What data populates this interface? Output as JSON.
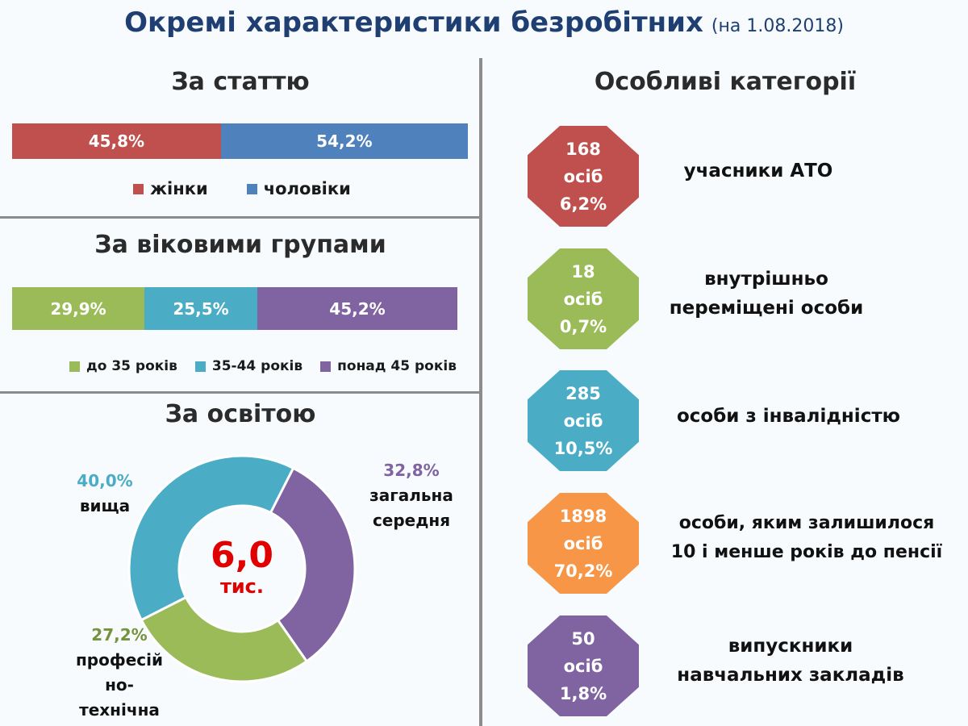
{
  "title": "Окремі характеристики безробітних",
  "title_date": "(на 1.08.2018)",
  "gender": {
    "heading": "За статтю",
    "chart_data": {
      "type": "bar",
      "stacked": true,
      "orientation": "horizontal",
      "categories": [
        "жінки",
        "чоловіки"
      ],
      "values": [
        45.8,
        54.2
      ],
      "labels": [
        "45,8%",
        "54,2%"
      ],
      "colors": [
        "#c0504d",
        "#4f81bd"
      ]
    },
    "legend": [
      "жінки",
      "чоловіки"
    ]
  },
  "age": {
    "heading": "За віковими групами",
    "chart_data": {
      "type": "bar",
      "stacked": true,
      "orientation": "horizontal",
      "categories": [
        "до 35 років",
        "35-44 років",
        "понад 45 років"
      ],
      "values": [
        29.9,
        25.5,
        45.2
      ],
      "labels": [
        "29,9%",
        "25,5%",
        "45,2%"
      ],
      "colors": [
        "#9bbb59",
        "#4bacc6",
        "#8064a2"
      ]
    },
    "legend": [
      "до 35 років",
      "35-44 років",
      "понад 45 років"
    ]
  },
  "education": {
    "heading": "За освітою",
    "center_value": "6,0",
    "center_unit": "тис.",
    "chart_data": {
      "type": "pie",
      "donut": true,
      "slices": [
        {
          "name": "загальна середня",
          "value": 32.8,
          "label": "32,8%",
          "color": "#8064a2"
        },
        {
          "name": "професійно-технічна",
          "value": 27.2,
          "label": "27,2%",
          "color": "#9bbb59"
        },
        {
          "name": "вища",
          "value": 40.0,
          "label": "40,0%",
          "color": "#4bacc6"
        }
      ]
    },
    "labels": {
      "higher_pct": "40,0%",
      "higher_name": "вища",
      "general_pct": "32,8%",
      "general_name_1": "загальна",
      "general_name_2": "середня",
      "vocational_pct": "27,2%",
      "vocational_name_1": "професій",
      "vocational_name_2": "но-",
      "vocational_name_3": "технічна"
    }
  },
  "special": {
    "heading": "Особливі категорії",
    "items": [
      {
        "count": "168",
        "unit": "осіб",
        "pct": "6,2%",
        "color": "#c0504d",
        "label_1": "учасники АТО",
        "label_2": ""
      },
      {
        "count": "18",
        "unit": "осіб",
        "pct": "0,7%",
        "color": "#9bbb59",
        "label_1": "внутрішньо",
        "label_2": "переміщені особи"
      },
      {
        "count": "285",
        "unit": "осіб",
        "pct": "10,5%",
        "color": "#4bacc6",
        "label_1": "особи з інвалідністю",
        "label_2": ""
      },
      {
        "count": "1898",
        "unit": "осіб",
        "pct": "70,2%",
        "color": "#f79646",
        "label_1": "особи, яким залишилося",
        "label_2": "10 і менше років до пенсії"
      },
      {
        "count": "50",
        "unit": "осіб",
        "pct": "1,8%",
        "color": "#8064a2",
        "label_1": "випускники",
        "label_2": "навчальних закладів"
      }
    ]
  }
}
